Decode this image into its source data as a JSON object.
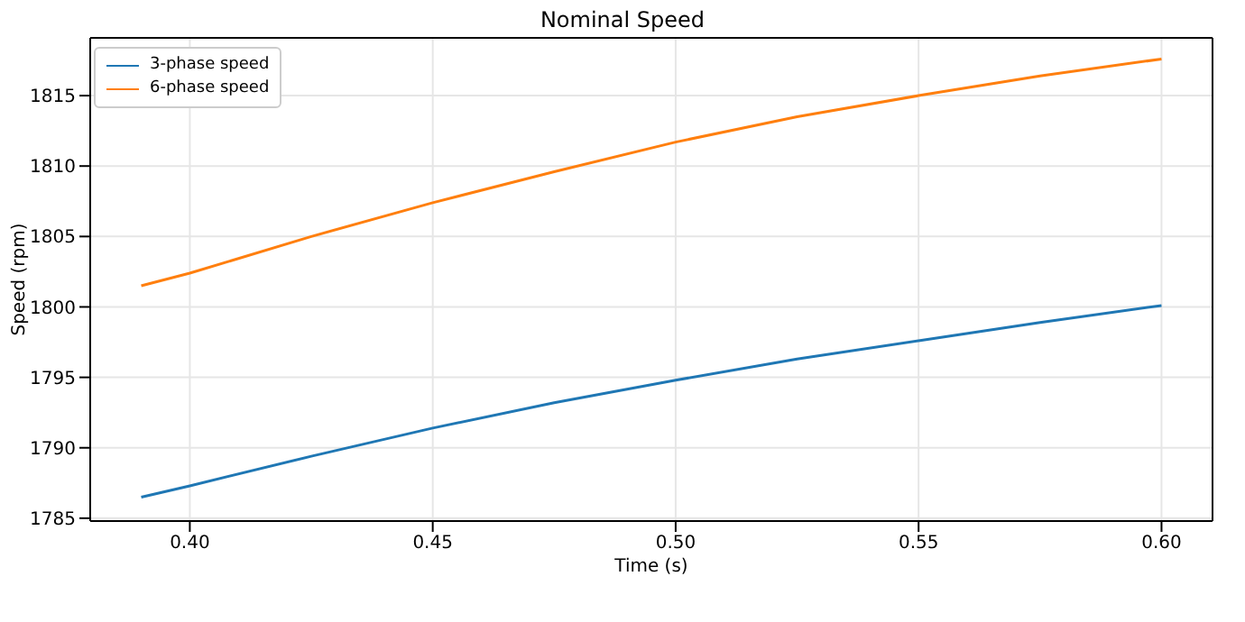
{
  "chart_data": {
    "type": "line",
    "title": "Nominal Speed",
    "xlabel": "Time (s)",
    "ylabel": "Speed (rpm)",
    "x": [
      0.39,
      0.4,
      0.425,
      0.45,
      0.475,
      0.5,
      0.525,
      0.55,
      0.575,
      0.6
    ],
    "series": [
      {
        "name": "3-phase speed",
        "color": "#1f77b4",
        "values": [
          1786.5,
          1787.3,
          1789.4,
          1791.4,
          1793.2,
          1794.8,
          1796.3,
          1797.6,
          1798.9,
          1800.1
        ]
      },
      {
        "name": "6-phase speed",
        "color": "#ff7f0e",
        "values": [
          1801.5,
          1802.4,
          1805.0,
          1807.4,
          1809.6,
          1811.7,
          1813.5,
          1815.0,
          1816.4,
          1817.6
        ]
      }
    ],
    "xlim": [
      0.3795,
      0.6105
    ],
    "xticks": [
      {
        "value": 0.4,
        "label": "0.40"
      },
      {
        "value": 0.45,
        "label": "0.45"
      },
      {
        "value": 0.5,
        "label": "0.50"
      },
      {
        "value": 0.55,
        "label": "0.55"
      },
      {
        "value": 0.6,
        "label": "0.60"
      }
    ],
    "ylim": [
      1784.8,
      1819.1
    ],
    "yticks": [
      1785,
      1790,
      1795,
      1800,
      1805,
      1810,
      1815
    ],
    "grid": true,
    "legend": "top left",
    "marker": "none",
    "line_style": "solid"
  }
}
